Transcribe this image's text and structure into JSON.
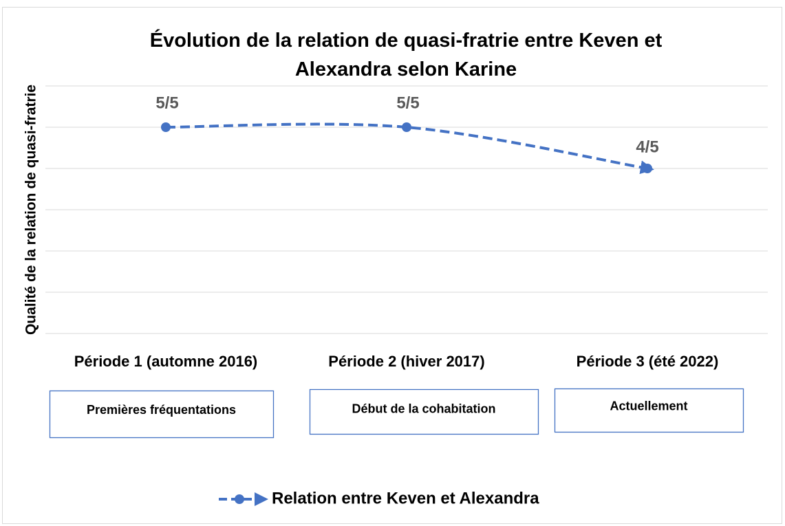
{
  "chart_data": {
    "type": "line",
    "title": "Évolution de la relation de quasi-fratrie entre Keven et Alexandra selon Karine",
    "ylabel": "Qualité de la relation de quasi-fratrie",
    "categories": [
      "Période 1 (automne 2016)",
      "Période 2 (hiver 2017)",
      "Période 3 (été 2022)"
    ],
    "series": [
      {
        "name": "Relation entre Keven et Alexandra",
        "color": "#4472c4",
        "values": [
          5,
          5,
          4
        ],
        "value_labels": [
          "5/5",
          "5/5",
          "4/5"
        ]
      }
    ],
    "annotations": [
      "Premières fréquentations",
      "Début de la cohabitation",
      "Actuellement"
    ],
    "ylim": [
      0,
      6
    ],
    "yticks": [
      0,
      1,
      2,
      3,
      4,
      5,
      6
    ],
    "grid": true,
    "smooth": true,
    "legend": "bottom"
  }
}
